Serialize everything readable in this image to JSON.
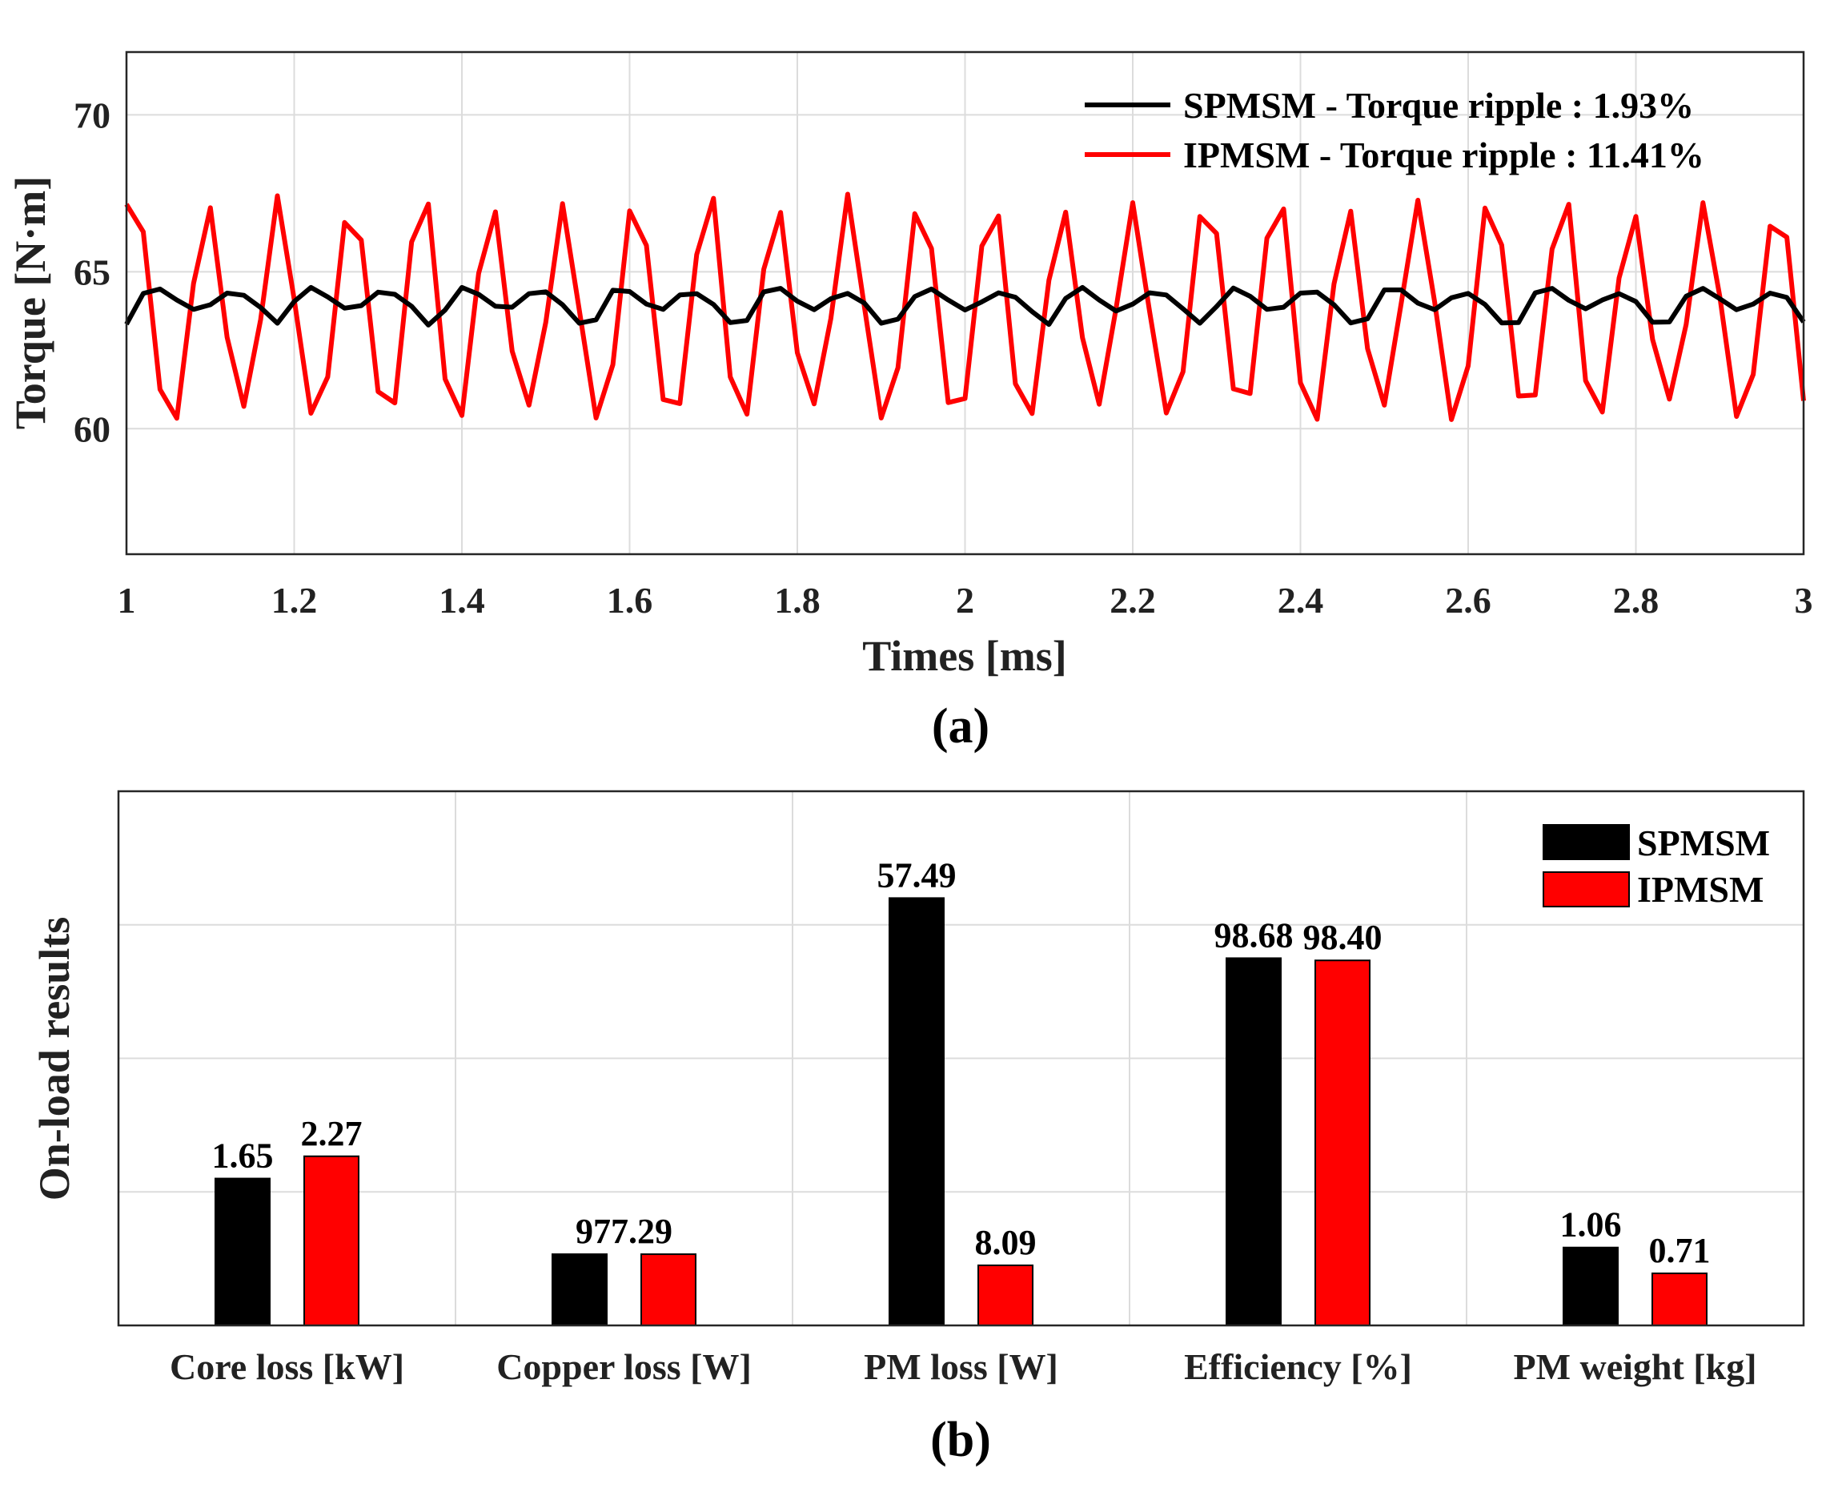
{
  "chart_data": [
    {
      "type": "line",
      "subplot_label": "(a)",
      "xlabel": "Times [ms]",
      "ylabel": "Torque [N·m]",
      "xlim": [
        1,
        3
      ],
      "ylim": [
        56,
        72
      ],
      "xticks": [
        "1",
        "1.2",
        "1.4",
        "1.6",
        "1.8",
        "2",
        "2.2",
        "2.4",
        "2.6",
        "2.8",
        "3"
      ],
      "yticks": [
        "60",
        "65",
        "70"
      ],
      "grid": true,
      "legend_position": "top-right",
      "series": [
        {
          "name": "SPMSM - Torque ripple : 1.93%",
          "color": "#000000",
          "mean": 63.9,
          "ripple_percent": 1.93,
          "min": 63.3,
          "max": 64.5,
          "x": [
            1.0,
            1.02,
            1.04,
            1.06,
            1.08,
            1.1,
            1.12,
            1.14,
            1.16,
            1.18,
            1.2,
            1.22,
            1.24,
            1.26,
            1.28,
            1.3,
            1.32,
            1.34,
            1.36,
            1.38,
            1.4,
            1.42,
            1.44,
            1.46,
            1.48,
            1.5,
            1.52,
            1.54,
            1.56,
            1.58,
            1.6,
            1.62,
            1.64,
            1.66,
            1.68,
            1.7,
            1.72,
            1.74,
            1.76,
            1.78,
            1.8,
            1.82,
            1.84,
            1.86,
            1.88,
            1.9,
            1.92,
            1.94,
            1.96,
            1.98,
            2.0,
            2.02,
            2.04,
            2.06,
            2.08,
            2.1,
            2.12,
            2.14,
            2.16,
            2.18,
            2.2,
            2.22,
            2.24,
            2.26,
            2.28,
            2.3,
            2.32,
            2.34,
            2.36,
            2.38,
            2.4,
            2.42,
            2.44,
            2.46,
            2.48,
            2.5,
            2.52,
            2.54,
            2.56,
            2.58,
            2.6,
            2.62,
            2.64,
            2.66,
            2.68,
            2.7,
            2.72,
            2.74,
            2.76,
            2.78,
            2.8,
            2.82,
            2.84,
            2.86,
            2.88,
            2.9,
            2.92,
            2.94,
            2.96,
            2.98,
            3.0
          ],
          "y": [
            63.33,
            64.31,
            64.45,
            64.1,
            63.8,
            63.95,
            64.32,
            64.25,
            63.86,
            63.36,
            64.05,
            64.5,
            64.2,
            63.84,
            63.92,
            64.35,
            64.28,
            63.9,
            63.3,
            63.78,
            64.5,
            64.28,
            63.9,
            63.87,
            64.3,
            64.36,
            63.95,
            63.36,
            63.47,
            64.41,
            64.37,
            63.97,
            63.8,
            64.26,
            64.3,
            63.96,
            63.38,
            63.45,
            64.36,
            64.47,
            64.06,
            63.79,
            64.14,
            64.31,
            64.0,
            63.36,
            63.49,
            64.21,
            64.45,
            64.1,
            63.78,
            64.04,
            64.33,
            64.19,
            63.73,
            63.32,
            64.15,
            64.5,
            64.1,
            63.75,
            63.97,
            64.33,
            64.26,
            63.82,
            63.36,
            63.89,
            64.48,
            64.22,
            63.8,
            63.87,
            64.32,
            64.35,
            63.95,
            63.37,
            63.5,
            64.42,
            64.42,
            64.0,
            63.79,
            64.17,
            64.31,
            63.96,
            63.37,
            63.38,
            64.33,
            64.47,
            64.09,
            63.82,
            64.1,
            64.3,
            64.05,
            63.39,
            63.4,
            64.22,
            64.47,
            64.14,
            63.79,
            63.97,
            64.32,
            64.18,
            63.4
          ]
        },
        {
          "name": "IPMSM - Torque ripple : 11.41%",
          "color": "#ff0000",
          "mean": 63.9,
          "ripple_percent": 11.41,
          "min": 60.3,
          "max": 67.5,
          "x": [
            1.0,
            1.02,
            1.04,
            1.06,
            1.08,
            1.1,
            1.12,
            1.14,
            1.16,
            1.18,
            1.2,
            1.22,
            1.24,
            1.26,
            1.28,
            1.3,
            1.32,
            1.34,
            1.36,
            1.38,
            1.4,
            1.42,
            1.44,
            1.46,
            1.48,
            1.5,
            1.52,
            1.54,
            1.56,
            1.58,
            1.6,
            1.62,
            1.64,
            1.66,
            1.68,
            1.7,
            1.72,
            1.74,
            1.76,
            1.78,
            1.8,
            1.82,
            1.84,
            1.86,
            1.88,
            1.9,
            1.92,
            1.94,
            1.96,
            1.98,
            2.0,
            2.02,
            2.04,
            2.06,
            2.08,
            2.1,
            2.12,
            2.14,
            2.16,
            2.18,
            2.2,
            2.22,
            2.24,
            2.26,
            2.28,
            2.3,
            2.32,
            2.34,
            2.36,
            2.38,
            2.4,
            2.42,
            2.44,
            2.46,
            2.48,
            2.5,
            2.52,
            2.54,
            2.56,
            2.58,
            2.6,
            2.62,
            2.64,
            2.66,
            2.68,
            2.7,
            2.72,
            2.74,
            2.76,
            2.78,
            2.8,
            2.82,
            2.84,
            2.86,
            2.88,
            2.9,
            2.92,
            2.94,
            2.96,
            2.98,
            3.0
          ],
          "y": [
            67.15,
            66.27,
            61.25,
            60.33,
            64.63,
            67.04,
            62.91,
            60.71,
            63.48,
            67.42,
            64.12,
            60.49,
            61.65,
            66.57,
            66.01,
            61.18,
            60.82,
            65.95,
            67.16,
            61.58,
            60.42,
            64.95,
            66.91,
            62.47,
            60.75,
            63.39,
            67.17,
            63.77,
            60.34,
            62.04,
            66.94,
            65.84,
            60.93,
            60.8,
            65.55,
            67.34,
            61.65,
            60.46,
            65.08,
            66.89,
            62.42,
            60.79,
            63.51,
            67.47,
            63.88,
            60.34,
            61.94,
            66.85,
            65.74,
            60.83,
            60.96,
            65.82,
            66.78,
            61.43,
            60.48,
            64.73,
            66.9,
            62.9,
            60.78,
            63.82,
            67.2,
            63.74,
            60.5,
            61.81,
            66.76,
            66.22,
            61.27,
            61.12,
            66.07,
            67.0,
            61.46,
            60.3,
            64.61,
            66.93,
            62.55,
            60.75,
            63.97,
            67.28,
            64.04,
            60.29,
            62.0,
            67.03,
            65.85,
            61.04,
            61.07,
            65.72,
            67.15,
            61.53,
            60.53,
            64.8,
            66.76,
            62.84,
            60.94,
            63.32,
            67.2,
            64.22,
            60.39,
            61.73,
            66.45,
            66.1,
            60.89
          ]
        }
      ]
    },
    {
      "type": "bar",
      "subplot_label": "(b)",
      "xlabel": "",
      "ylabel": "On-load results",
      "categories": [
        "Core loss [kW]",
        "Copper loss [W]",
        "PM loss [W]",
        "Efficiency [%]",
        "PM weight [kg]"
      ],
      "ylim": [
        0,
        1.2
      ],
      "yticks_shown": false,
      "grid": true,
      "legend_position": "top-right",
      "value_labels": [
        [
          "1.65",
          "2.27"
        ],
        [
          "977.29",
          ""
        ],
        [
          "57.49",
          "8.09"
        ],
        [
          "98.68",
          "98.40"
        ],
        [
          "1.06",
          "0.71"
        ]
      ],
      "series": [
        {
          "name": "SPMSM",
          "color": "#000000",
          "values": [
            0.33,
            0.16,
            0.96,
            0.825,
            0.175
          ]
        },
        {
          "name": "IPMSM",
          "color": "#ff0000",
          "values": [
            0.38,
            0.16,
            0.135,
            0.82,
            0.117
          ]
        }
      ]
    }
  ]
}
